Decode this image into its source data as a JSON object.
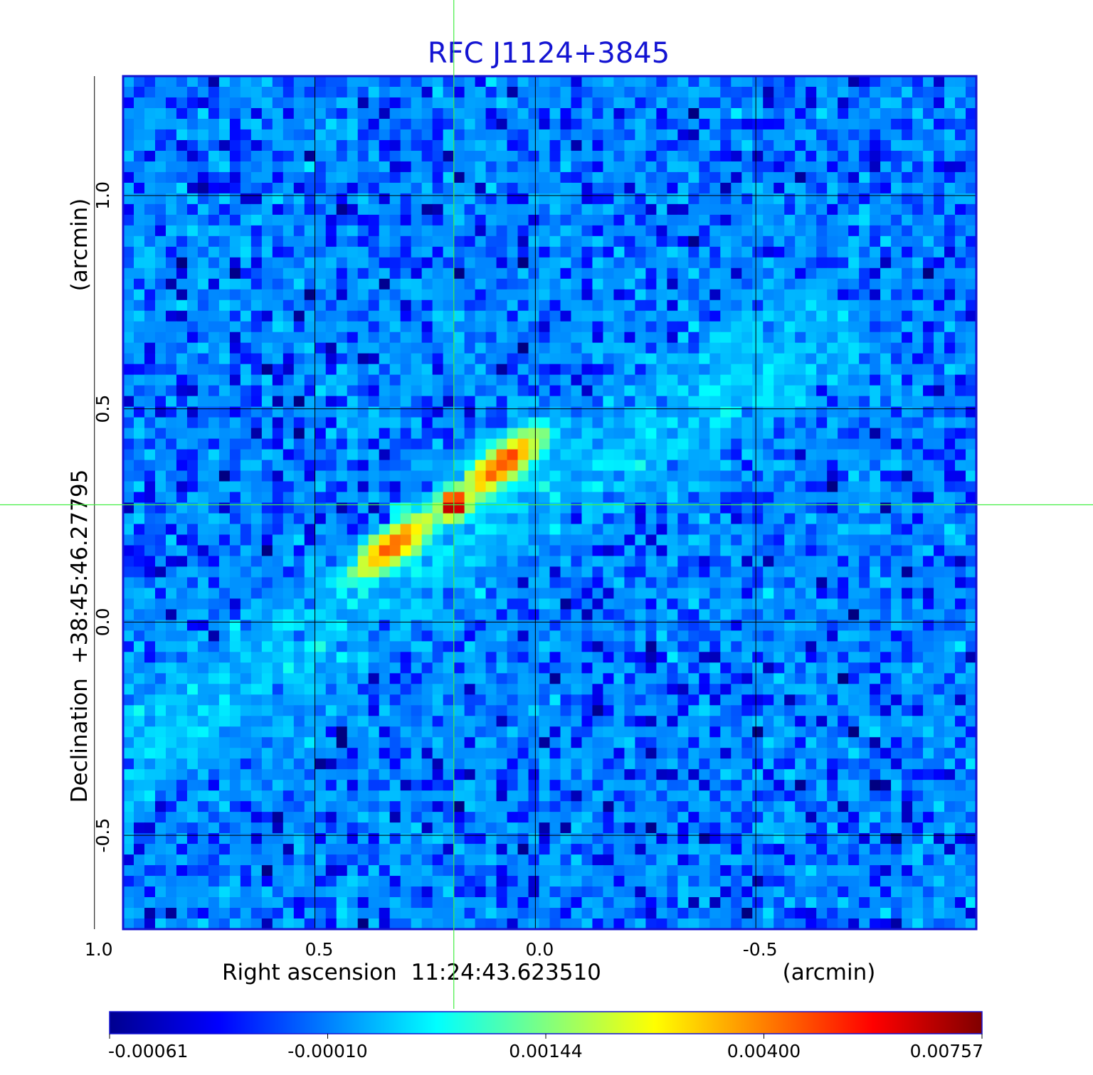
{
  "chart_data": {
    "type": "heatmap",
    "title": "RFC J1124+3845",
    "xlabel": "Right ascension  11:24:43.623510",
    "xlabel_unit": "(arcmin)",
    "ylabel": "Declination  +38:45:46.27795",
    "ylabel_unit": "(arcmin)",
    "xlim": [
      0.935,
      -1.0
    ],
    "ylim": [
      -0.72,
      1.28
    ],
    "x_ticks": [
      {
        "value": 1.0,
        "label": "1.0"
      },
      {
        "value": 0.5,
        "label": "0.5"
      },
      {
        "value": 0.0,
        "label": "0.0"
      },
      {
        "value": -0.5,
        "label": "-0.5"
      }
    ],
    "y_ticks": [
      {
        "value": 1.0,
        "label": "1.0"
      },
      {
        "value": 0.5,
        "label": "0.5"
      },
      {
        "value": 0.0,
        "label": "0.0"
      },
      {
        "value": -0.5,
        "label": "-0.5"
      }
    ],
    "grid": true,
    "crosshair": {
      "x": 0.185,
      "y": 0.275,
      "color": "#44ee44"
    },
    "colorbar": {
      "placement": "bottom",
      "colormap": "jet",
      "ticks": [
        {
          "value": -0.00061,
          "label": "-0.00061"
        },
        {
          "value": -0.0001,
          "label": "-0.00010"
        },
        {
          "value": 0.00144,
          "label": "0.00144"
        },
        {
          "value": 0.004,
          "label": "0.00400"
        },
        {
          "value": 0.00757,
          "label": "0.00757"
        }
      ]
    },
    "features": [
      {
        "kind": "core",
        "x": 0.185,
        "y": 0.275,
        "peak": 0.00757
      },
      {
        "kind": "jet-knot",
        "x": 0.075,
        "y": 0.37,
        "peak": 0.0048
      },
      {
        "kind": "jet-knot",
        "x": 0.32,
        "y": 0.18,
        "peak": 0.0043
      },
      {
        "kind": "lobe",
        "x0": -0.55,
        "y0": 0.62,
        "x1": 0.9,
        "y1": -0.28,
        "level": 0.00035
      }
    ],
    "colors": {
      "frame": "#1414d2",
      "title": "#1414d2",
      "grid": "#000000",
      "crosshair": "#44ee44"
    }
  }
}
